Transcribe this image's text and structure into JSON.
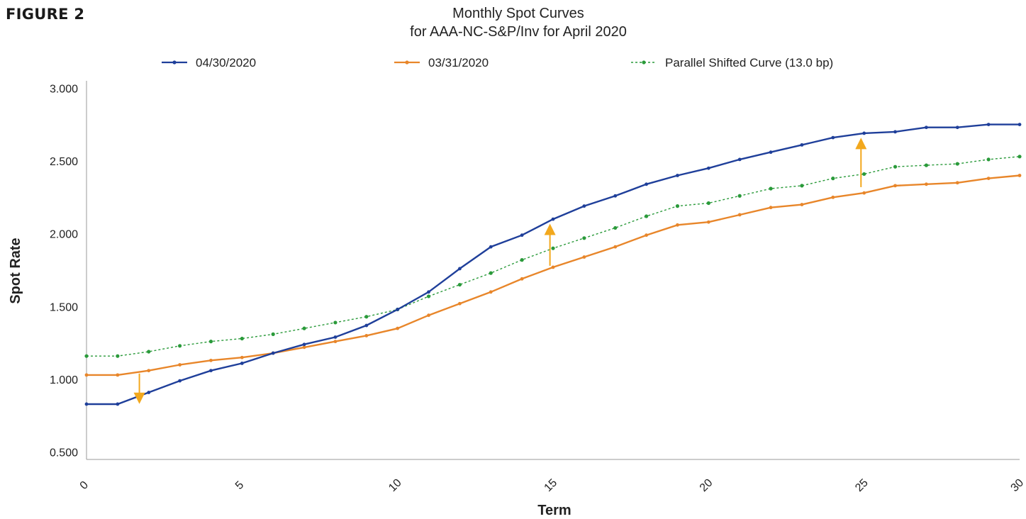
{
  "figure_label": "FIGURE 2",
  "colors": {
    "series_0430": "#1f3f9a",
    "series_0331": "#e8862a",
    "series_shift": "#2a9a3a",
    "arrow": "#f2a81d",
    "axis": "#9a9a9a"
  },
  "chart_data": {
    "type": "line",
    "title": "Monthly Spot Curves",
    "subtitle": "for AAA-NC-S&P/Inv for April 2020",
    "xlabel": "Term",
    "ylabel": "Spot Rate",
    "xlim": [
      0,
      30
    ],
    "ylim": [
      0.45,
      3.05
    ],
    "x_ticks": [
      "0",
      "5",
      "10",
      "15",
      "20",
      "25",
      "30"
    ],
    "y_ticks": [
      "3.000",
      "2.500",
      "2.000",
      "1.500",
      "1.000",
      "0.500"
    ],
    "legend_position": "top",
    "x": [
      0,
      1,
      2,
      3,
      4,
      5,
      6,
      7,
      8,
      9,
      10,
      11,
      12,
      13,
      14,
      15,
      16,
      17,
      18,
      19,
      20,
      21,
      22,
      23,
      24,
      25,
      26,
      27,
      28,
      29,
      30
    ],
    "series": [
      {
        "name": "04/30/2020",
        "style": "solid",
        "values": [
          0.83,
          0.83,
          0.91,
          0.99,
          1.06,
          1.11,
          1.18,
          1.24,
          1.29,
          1.37,
          1.48,
          1.6,
          1.76,
          1.91,
          1.99,
          2.1,
          2.19,
          2.26,
          2.34,
          2.4,
          2.45,
          2.51,
          2.56,
          2.61,
          2.66,
          2.69,
          2.7,
          2.73,
          2.73,
          2.75,
          2.75
        ]
      },
      {
        "name": "03/31/2020",
        "style": "solid",
        "values": [
          1.03,
          1.03,
          1.06,
          1.1,
          1.13,
          1.15,
          1.18,
          1.22,
          1.26,
          1.3,
          1.35,
          1.44,
          1.52,
          1.6,
          1.69,
          1.77,
          1.84,
          1.91,
          1.99,
          2.06,
          2.08,
          2.13,
          2.18,
          2.2,
          2.25,
          2.28,
          2.33,
          2.34,
          2.35,
          2.38,
          2.4
        ]
      },
      {
        "name": "Parallel Shifted Curve (13.0 bp)",
        "style": "dotted",
        "values": [
          1.16,
          1.16,
          1.19,
          1.23,
          1.26,
          1.28,
          1.31,
          1.35,
          1.39,
          1.43,
          1.48,
          1.57,
          1.65,
          1.73,
          1.82,
          1.9,
          1.97,
          2.04,
          2.12,
          2.19,
          2.21,
          2.26,
          2.31,
          2.33,
          2.38,
          2.41,
          2.46,
          2.47,
          2.48,
          2.51,
          2.53
        ]
      }
    ],
    "annotations": [
      {
        "kind": "arrow",
        "x": 1.7,
        "from": 1.04,
        "to": 0.87
      },
      {
        "kind": "arrow",
        "x": 14.9,
        "from": 1.78,
        "to": 2.03
      },
      {
        "kind": "arrow",
        "x": 24.9,
        "from": 2.32,
        "to": 2.62
      }
    ]
  }
}
